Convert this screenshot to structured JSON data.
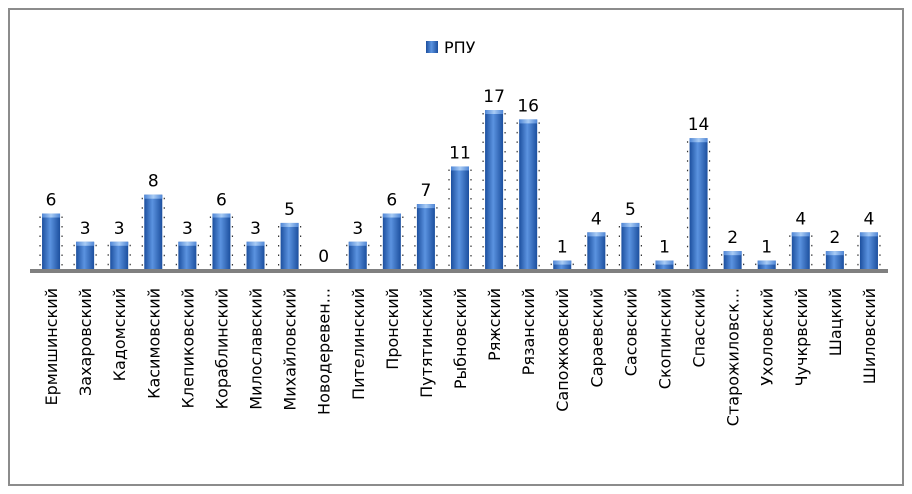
{
  "chart_data": {
    "type": "bar",
    "title": "",
    "xlabel": "",
    "ylabel": "",
    "ylim": [
      0,
      17
    ],
    "grid": false,
    "legend": {
      "position": "top-center",
      "entries": [
        "РПУ"
      ]
    },
    "colors": {
      "bar_top": "#7fb0ec",
      "bar_mid": "#3a74c9",
      "bar_bottom": "#1c4f9e",
      "axis": "#808080"
    },
    "categories": [
      "Ермишинский",
      "Захаровский",
      "Кадомский",
      "Касимовский",
      "Клепиковский",
      "Кораблинский",
      "Милославский",
      "Михайловский",
      "Новодеревен...",
      "Пителинский",
      "Пронский",
      "Путятинский",
      "Рыбновский",
      "Ряжский",
      "Рязанский",
      "Сапожковский",
      "Сараевский",
      "Сасовский",
      "Скопинский",
      "Спасский",
      "Старожиловск...",
      "Уxоловский",
      "Чучкрвский",
      "Шацкий",
      "Шиловский"
    ],
    "series": [
      {
        "name": "РПУ",
        "values": [
          6,
          3,
          3,
          8,
          3,
          6,
          3,
          5,
          0,
          3,
          6,
          7,
          11,
          17,
          16,
          1,
          4,
          5,
          1,
          14,
          2,
          1,
          4,
          2,
          4
        ]
      }
    ]
  }
}
